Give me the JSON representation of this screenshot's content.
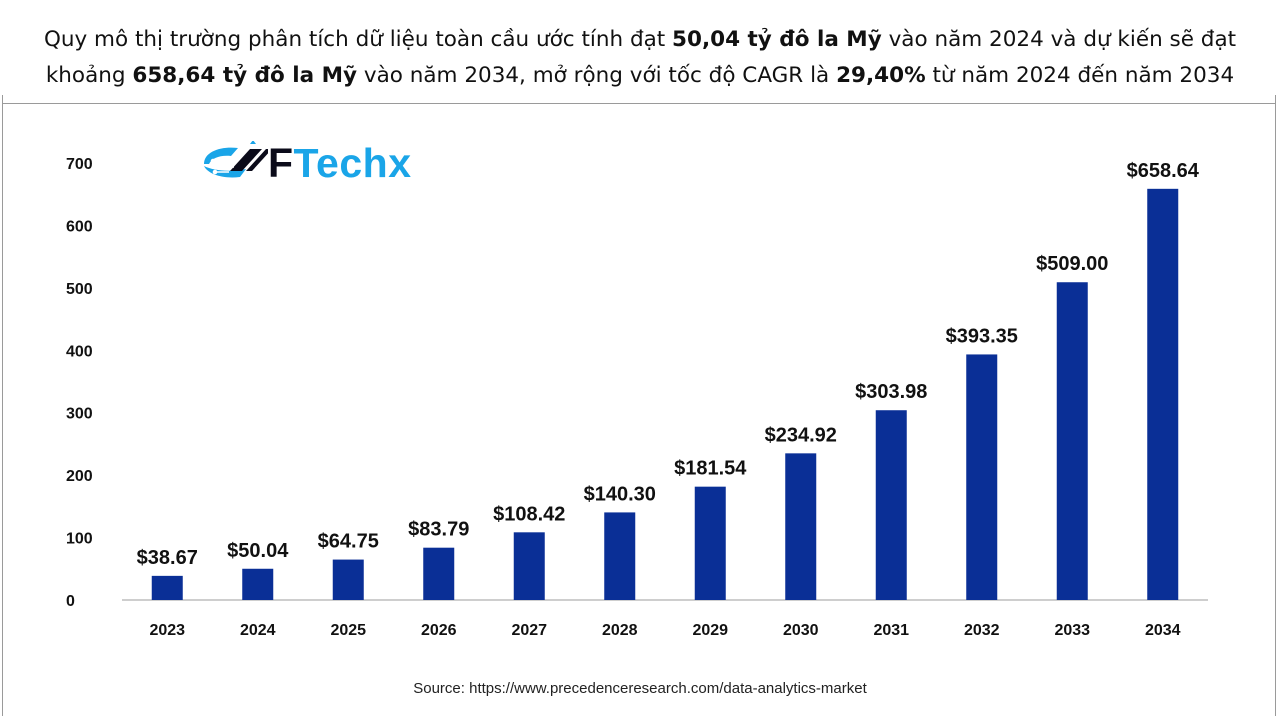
{
  "header": {
    "line1_pre": "Quy mô thị trường phân tích dữ liệu toàn cầu ước tính đạt ",
    "line1_bold": "50,04 tỷ đô la Mỹ",
    "line1_post": " vào năm 2024 và dự kiến sẽ đạt",
    "line2_pre": "khoảng ",
    "line2_bold1": "658,64 tỷ đô la Mỹ",
    "line2_mid": " vào năm 2034, mở rộng với tốc độ CAGR là ",
    "line2_bold2": "29,40%",
    "line2_post": " từ năm 2024 đến năm 2034"
  },
  "logo": {
    "letter_f": "F",
    "rest": "Techx",
    "colors": {
      "dark": "#0b0b1a",
      "blue": "#1aa5e8"
    }
  },
  "source": "Source: https://www.precedenceresearch.com/data-analytics-market",
  "colors": {
    "bar": "#0a2f96",
    "axis": "#b0b0b0",
    "text": "#111111"
  },
  "chart_data": {
    "type": "bar",
    "title": "",
    "xlabel": "",
    "ylabel": "",
    "categories": [
      "2023",
      "2024",
      "2025",
      "2026",
      "2027",
      "2028",
      "2029",
      "2030",
      "2031",
      "2032",
      "2033",
      "2034"
    ],
    "values": [
      38.67,
      50.04,
      64.75,
      83.79,
      108.42,
      140.3,
      181.54,
      234.92,
      303.98,
      393.35,
      509.0,
      658.64
    ],
    "data_labels": [
      "$38.67",
      "$50.04",
      "$64.75",
      "$83.79",
      "$108.42",
      "$140.30",
      "$181.54",
      "$234.92",
      "$303.98",
      "$393.35",
      "$509.00",
      "$658.64"
    ],
    "y_ticks": [
      0,
      100,
      200,
      300,
      400,
      500,
      600,
      700
    ],
    "ylim": [
      0,
      700
    ],
    "grid": false,
    "legend": "none"
  }
}
